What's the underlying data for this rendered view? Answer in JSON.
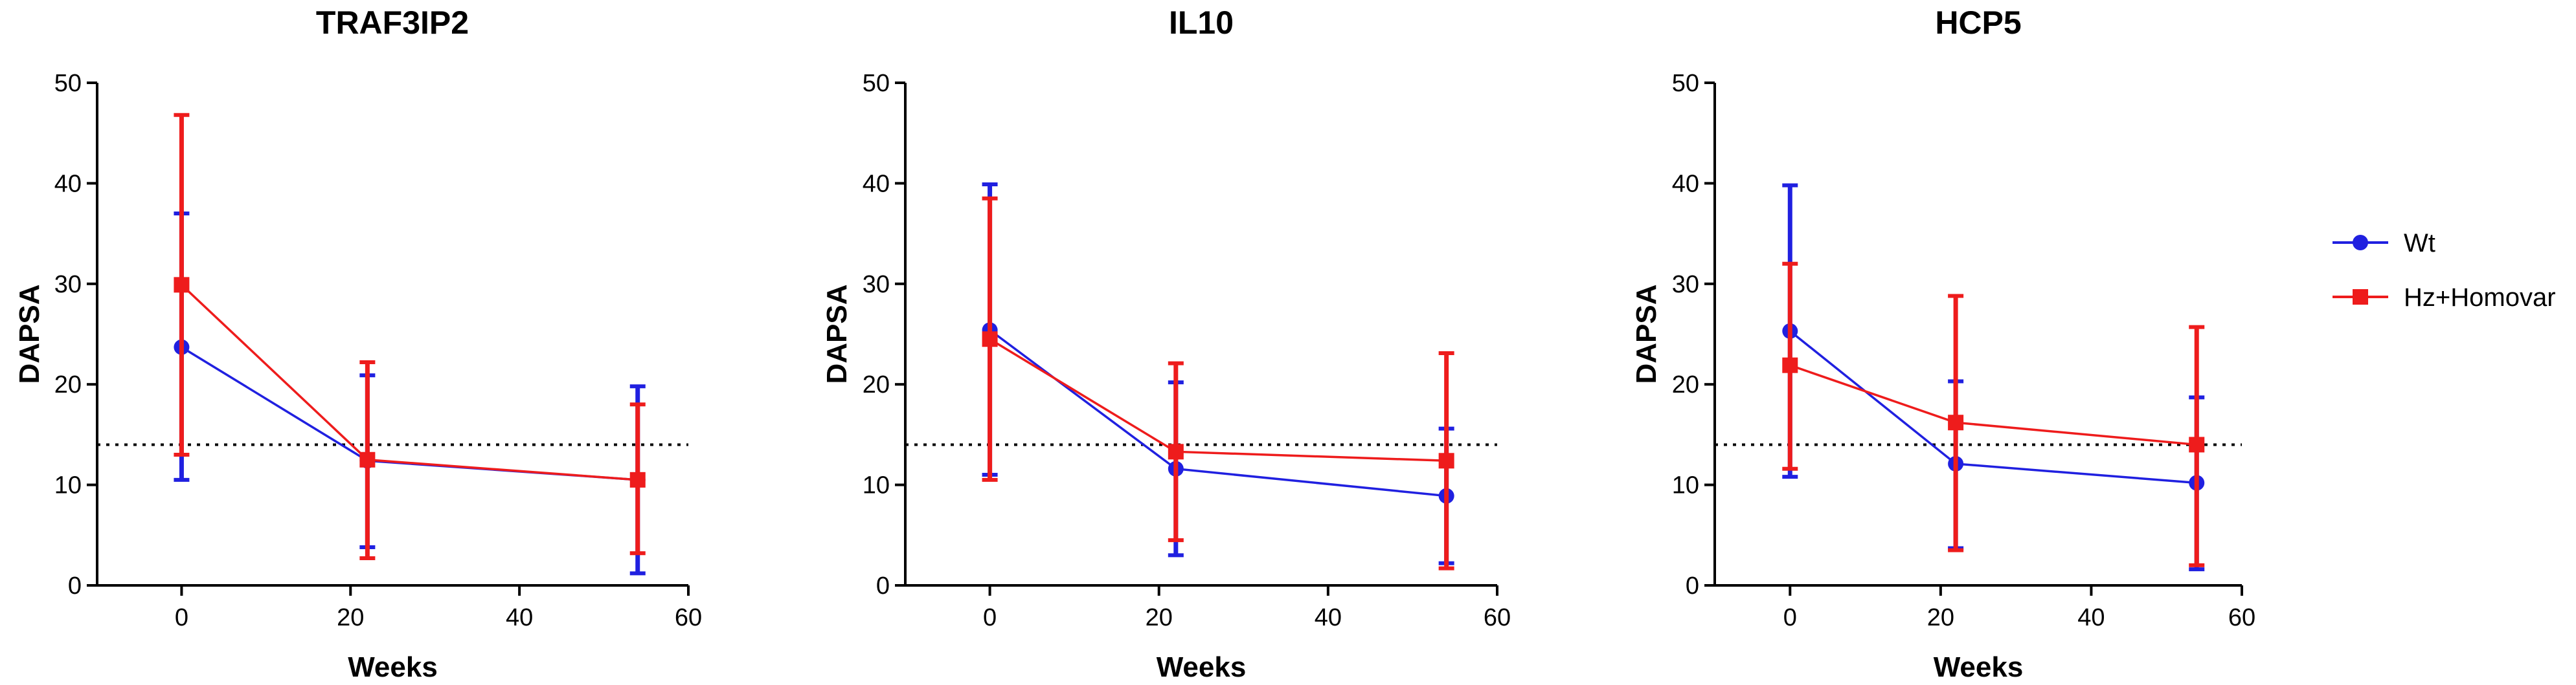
{
  "colors": {
    "wt": "#2020e0",
    "hz": "#ee1c1c",
    "axis": "#000000",
    "threshold": "#000000"
  },
  "legend": {
    "placement": "right",
    "entries": [
      {
        "label": "Wt",
        "color": "#2020e0",
        "marker": "circle"
      },
      {
        "label": "Hz+Homovar",
        "color": "#ee1c1c",
        "marker": "square"
      }
    ]
  },
  "chart_data": [
    {
      "type": "line",
      "title": "TRAF3IP2",
      "xlabel": "Weeks",
      "ylabel": "DAPSA",
      "xlim": [
        -10,
        60
      ],
      "ylim": [
        0,
        50
      ],
      "xticks": [
        0,
        20,
        40,
        60
      ],
      "yticks": [
        0,
        10,
        20,
        30,
        40,
        50
      ],
      "threshold": 14,
      "series": [
        {
          "name": "Wt",
          "x": [
            0,
            22,
            54
          ],
          "values": [
            23.7,
            12.4,
            10.5
          ],
          "err_low": [
            10.5,
            3.8,
            1.2
          ],
          "err_high": [
            37.0,
            20.9,
            19.8
          ]
        },
        {
          "name": "Hz+Homovar",
          "x": [
            0,
            22,
            54
          ],
          "values": [
            29.9,
            12.5,
            10.5
          ],
          "err_low": [
            13.0,
            2.7,
            3.2
          ],
          "err_high": [
            46.8,
            22.2,
            18.0
          ]
        }
      ]
    },
    {
      "type": "line",
      "title": "IL10",
      "xlabel": "Weeks",
      "ylabel": "DAPSA",
      "xlim": [
        -10,
        60
      ],
      "ylim": [
        0,
        50
      ],
      "xticks": [
        0,
        20,
        40,
        60
      ],
      "yticks": [
        0,
        10,
        20,
        30,
        40,
        50
      ],
      "threshold": 14,
      "series": [
        {
          "name": "Wt",
          "x": [
            0,
            22,
            54
          ],
          "values": [
            25.4,
            11.6,
            8.9
          ],
          "err_low": [
            11.0,
            3.0,
            2.2
          ],
          "err_high": [
            39.9,
            20.2,
            15.6
          ]
        },
        {
          "name": "Hz+Homovar",
          "x": [
            0,
            22,
            54
          ],
          "values": [
            24.5,
            13.3,
            12.4
          ],
          "err_low": [
            10.5,
            4.5,
            1.7
          ],
          "err_high": [
            38.5,
            22.1,
            23.1
          ]
        }
      ]
    },
    {
      "type": "line",
      "title": "HCP5",
      "xlabel": "Weeks",
      "ylabel": "DAPSA",
      "xlim": [
        -10,
        60
      ],
      "ylim": [
        0,
        50
      ],
      "xticks": [
        0,
        20,
        40,
        60
      ],
      "yticks": [
        0,
        10,
        20,
        30,
        40,
        50
      ],
      "threshold": 14,
      "series": [
        {
          "name": "Wt",
          "x": [
            0,
            22,
            54
          ],
          "values": [
            25.3,
            12.1,
            10.2
          ],
          "err_low": [
            10.8,
            3.7,
            1.6
          ],
          "err_high": [
            39.8,
            20.3,
            18.7
          ]
        },
        {
          "name": "Hz+Homovar",
          "x": [
            0,
            22,
            54
          ],
          "values": [
            21.9,
            16.2,
            14.0
          ],
          "err_low": [
            11.6,
            3.5,
            2.0
          ],
          "err_high": [
            32.0,
            28.8,
            25.7
          ]
        }
      ]
    }
  ]
}
